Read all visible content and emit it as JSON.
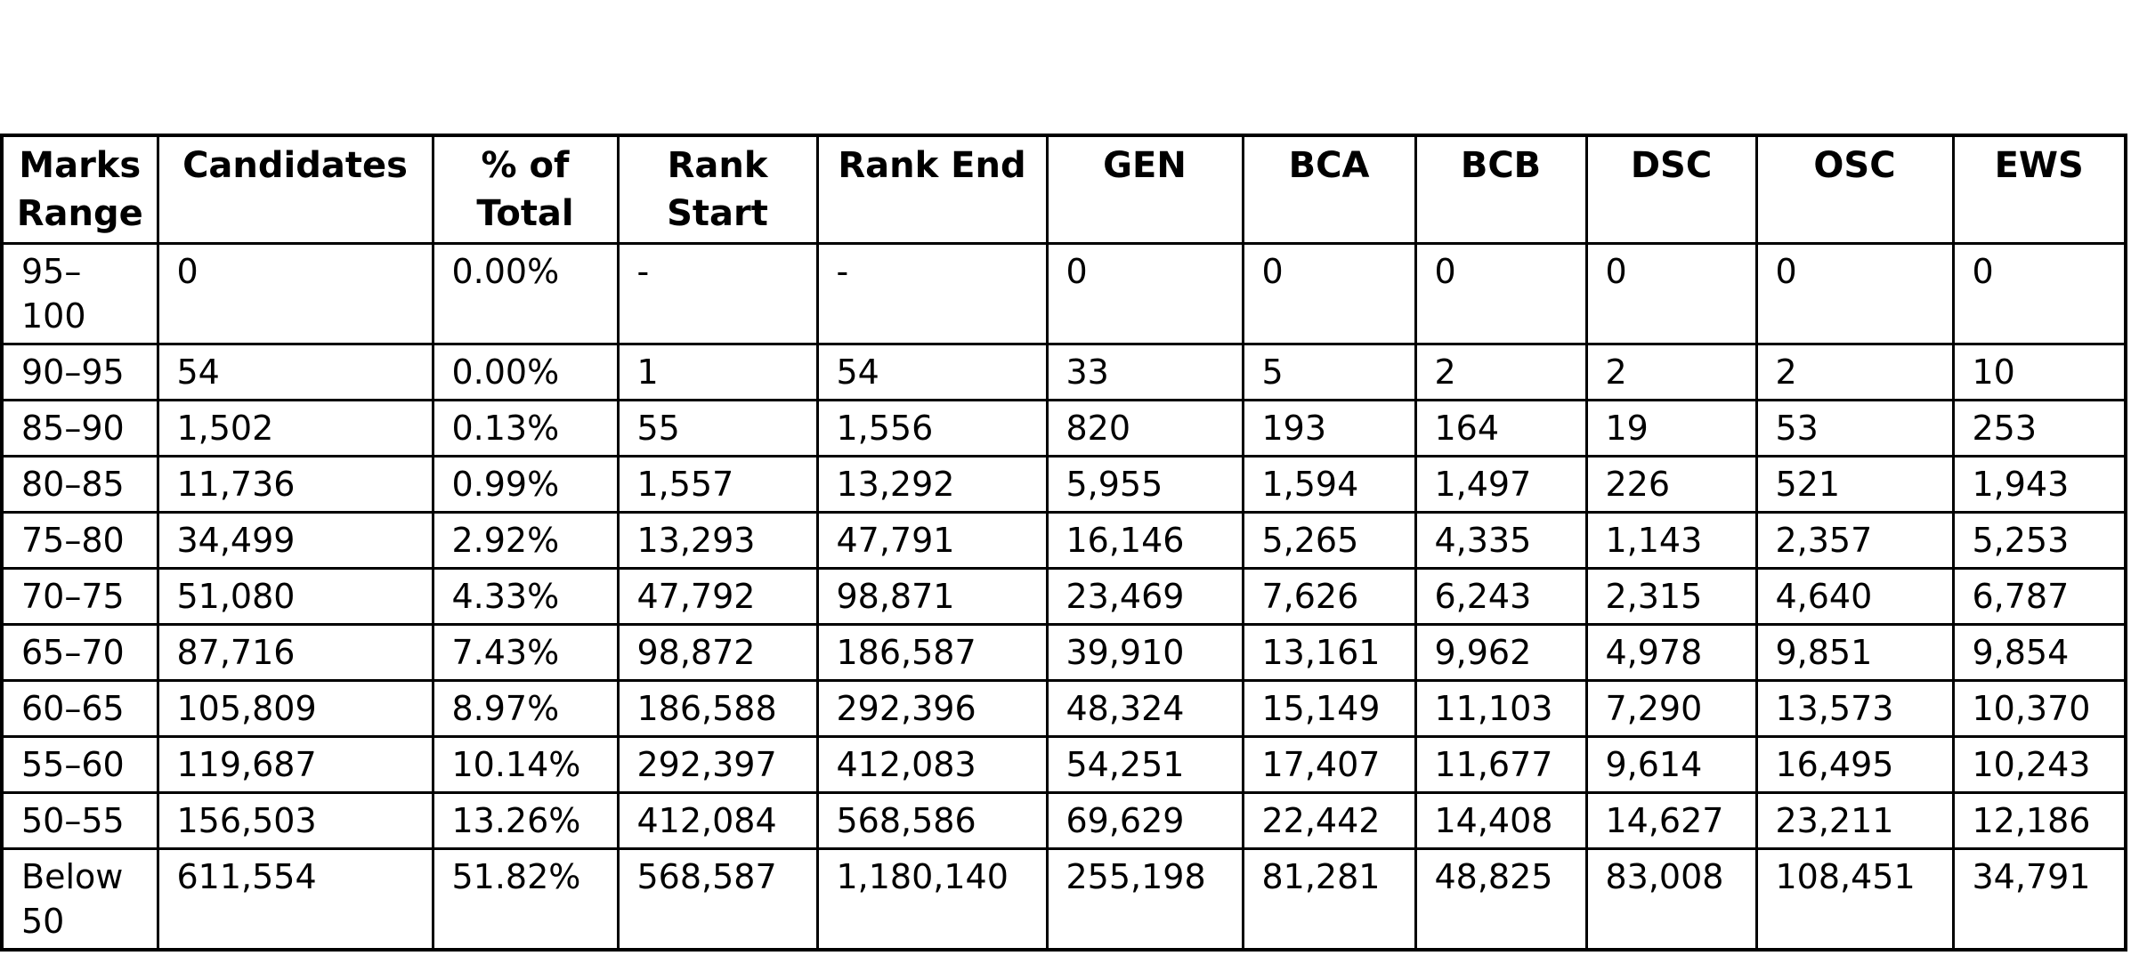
{
  "table": {
    "title": "marks-range-rank-distribution",
    "columns": [
      "Marks Range",
      "Candidates",
      "% of Total",
      "Rank Start",
      "Rank End",
      "GEN",
      "BCA",
      "BCB",
      "DSC",
      "OSC",
      "EWS"
    ],
    "rows": [
      [
        "95–100",
        "0",
        "0.00%",
        "-",
        "-",
        "0",
        "0",
        "0",
        "0",
        "0",
        "0"
      ],
      [
        "90–95",
        "54",
        "0.00%",
        "1",
        "54",
        "33",
        "5",
        "2",
        "2",
        "2",
        "10"
      ],
      [
        "85–90",
        "1,502",
        "0.13%",
        "55",
        "1,556",
        "820",
        "193",
        "164",
        "19",
        "53",
        "253"
      ],
      [
        "80–85",
        "11,736",
        "0.99%",
        "1,557",
        "13,292",
        "5,955",
        "1,594",
        "1,497",
        "226",
        "521",
        "1,943"
      ],
      [
        "75–80",
        "34,499",
        "2.92%",
        "13,293",
        "47,791",
        "16,146",
        "5,265",
        "4,335",
        "1,143",
        "2,357",
        "5,253"
      ],
      [
        "70–75",
        "51,080",
        "4.33%",
        "47,792",
        "98,871",
        "23,469",
        "7,626",
        "6,243",
        "2,315",
        "4,640",
        "6,787"
      ],
      [
        "65–70",
        "87,716",
        "7.43%",
        "98,872",
        "186,587",
        "39,910",
        "13,161",
        "9,962",
        "4,978",
        "9,851",
        "9,854"
      ],
      [
        "60–65",
        "105,809",
        "8.97%",
        "186,588",
        "292,396",
        "48,324",
        "15,149",
        "11,103",
        "7,290",
        "13,573",
        "10,370"
      ],
      [
        "55–60",
        "119,687",
        "10.14%",
        "292,397",
        "412,083",
        "54,251",
        "17,407",
        "11,677",
        "9,614",
        "16,495",
        "10,243"
      ],
      [
        "50–55",
        "156,503",
        "13.26%",
        "412,084",
        "568,586",
        "69,629",
        "22,442",
        "14,408",
        "14,627",
        "23,211",
        "12,186"
      ],
      [
        "Below 50",
        "611,554",
        "51.82%",
        "568,587",
        "1,180,140",
        "255,198",
        "81,281",
        "48,825",
        "83,008",
        "108,451",
        "34,791"
      ]
    ],
    "colors": {
      "border": "#000000",
      "text": "#000000",
      "background": "#ffffff"
    }
  }
}
